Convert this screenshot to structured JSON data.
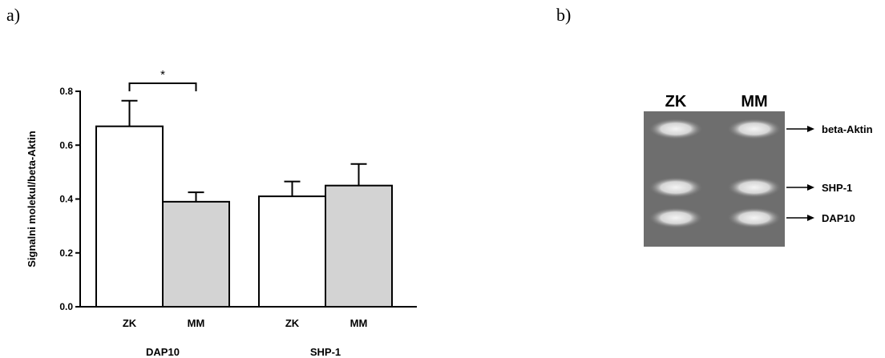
{
  "panels": {
    "a": "a)",
    "b": "b)"
  },
  "chart_data": {
    "type": "bar",
    "groups": [
      {
        "name": "DAP10",
        "categories": [
          "ZK",
          "MM"
        ],
        "values": [
          0.67,
          0.39
        ],
        "errors": [
          0.095,
          0.035
        ]
      },
      {
        "name": "SHP-1",
        "categories": [
          "ZK",
          "MM"
        ],
        "values": [
          0.41,
          0.45
        ],
        "errors": [
          0.055,
          0.08
        ]
      }
    ],
    "ylabel": "Signalni molekul/beta-Aktin",
    "ylim": [
      0,
      0.8
    ],
    "yticks": [
      "0.0",
      "0.2",
      "0.4",
      "0.6",
      "0.8"
    ],
    "significance": {
      "label": "*",
      "between": [
        "DAP10 ZK",
        "DAP10 MM"
      ]
    },
    "colors": {
      "ZK": "#ffffff",
      "MM": "#d3d3d3"
    }
  },
  "gel": {
    "lanes": [
      "ZK",
      "MM"
    ],
    "bands": [
      "beta-Aktin",
      "SHP-1",
      "DAP10"
    ]
  }
}
